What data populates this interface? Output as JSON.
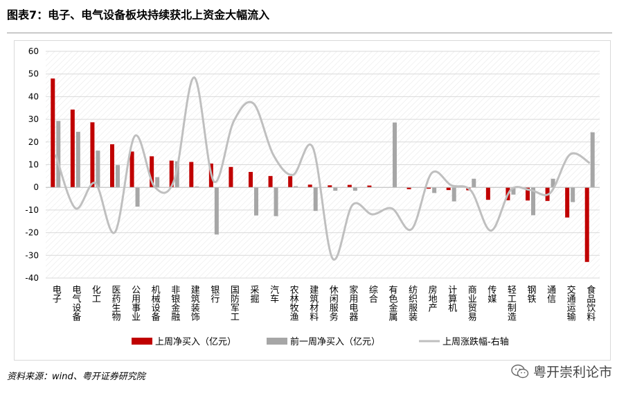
{
  "title": "图表7：电子、电气设备板块持续获北上资金大幅流入",
  "source": "资料来源：wind、粤开证券研究院",
  "watermark": "粤开崇利论市",
  "colors": {
    "series1": "#c00000",
    "series2": "#a6a6a6",
    "line": "#bfbfbf",
    "grid": "#d9d9d9",
    "axis_text": "#000000"
  },
  "chart_data": {
    "type": "bar",
    "title": "",
    "xlabel": "",
    "ylabel": "",
    "ylim": [
      -40,
      60
    ],
    "yticks": [
      60,
      50,
      40,
      30,
      20,
      10,
      0,
      -10,
      -20,
      -30,
      -40
    ],
    "y2_note": "right axis not displayed",
    "grid": true,
    "legend_position": "bottom",
    "categories": [
      "电子",
      "电气设备",
      "化工",
      "医药生物",
      "公用事业",
      "机械设备",
      "非银金融",
      "建筑装饰",
      "银行",
      "国防军工",
      "采掘",
      "汽车",
      "农林牧渔",
      "建筑材料",
      "休闲服务",
      "家用电器",
      "综合",
      "有色金属",
      "纺织服装",
      "房地产",
      "计算机",
      "商业贸易",
      "传媒",
      "轻工制造",
      "钢铁",
      "通信",
      "交通运输",
      "食品饮料"
    ],
    "series": [
      {
        "name": "上周净买入（亿元）",
        "type": "bar",
        "color": "#c00000",
        "values": [
          48,
          34.3,
          28.7,
          19,
          15.8,
          13.7,
          11.8,
          11.2,
          10.5,
          9,
          6.8,
          5,
          4.9,
          1.2,
          0.9,
          1.1,
          0.8,
          0,
          -0.8,
          -0.6,
          -1.2,
          -1.3,
          -5.5,
          -5.7,
          -5.8,
          -6,
          -13.3,
          -32.9
        ]
      },
      {
        "name": "前一周净买入（亿元）",
        "type": "bar",
        "color": "#a6a6a6",
        "values": [
          29.3,
          24.5,
          16.2,
          9.8,
          -8.5,
          4.5,
          11.5,
          0.4,
          -20.8,
          0,
          -12.4,
          -12.7,
          0.5,
          -10.4,
          -1.5,
          -1.5,
          0,
          28.6,
          0,
          -2.5,
          -6.2,
          3.8,
          0,
          -3.2,
          -12.3,
          3.8,
          -6.5,
          24.3
        ]
      },
      {
        "name": "上周涨跌幅-右轴",
        "type": "line",
        "color": "#bfbfbf",
        "values": [
          14.5,
          -9.2,
          1.9,
          -19.8,
          22.6,
          0.3,
          3.3,
          48.5,
          2.6,
          29.1,
          37,
          14.4,
          5.5,
          17.6,
          -31.4,
          -7.8,
          -11.9,
          -9.3,
          -18.4,
          6.2,
          0.9,
          -1.5,
          -19.1,
          -1.2,
          -1.2,
          -2.5,
          14.5,
          10.7
        ]
      }
    ]
  }
}
